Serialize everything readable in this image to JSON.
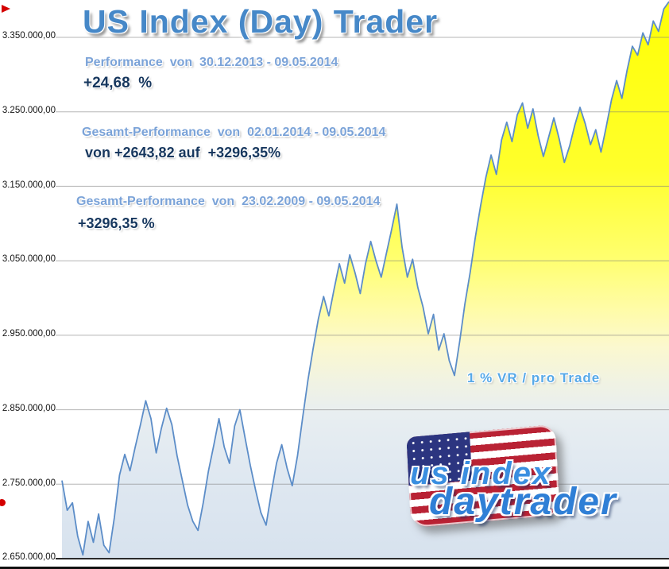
{
  "title": "US Index (Day) Trader",
  "annotations": {
    "performance": {
      "label": "Performance  von  30.12.2013 - 09.05.2014",
      "value": "+24,68  %"
    },
    "gesamt_2014": {
      "label": "Gesamt-Performance  von  02.01.2014 - 09.05.2014",
      "value": "von +2643,82 auf  +3296,35%"
    },
    "gesamt_2009": {
      "label": "Gesamt-Performance  von  23.02.2009 - 09.05.2014",
      "value": "+3296,35 %"
    },
    "risk_note": "1 % VR / pro Trade"
  },
  "logo": {
    "line1": "us index",
    "line2": "daytrader"
  },
  "chart_data": {
    "type": "area",
    "title": "US Index (Day) Trader",
    "xlabel": "",
    "ylabel": "",
    "legend": "none",
    "grid": "horizontal",
    "ylim": [
      2650000,
      3350000
    ],
    "yticks": [
      {
        "label": "3.350.000,00",
        "value": 3350000
      },
      {
        "label": "3.250.000,00",
        "value": 3250000
      },
      {
        "label": "3.150.000,00",
        "value": 3150000
      },
      {
        "label": "3.050.000,00",
        "value": 3050000
      },
      {
        "label": "2.950.000,00",
        "value": 2950000
      },
      {
        "label": "2.850.000,00",
        "value": 2850000
      },
      {
        "label": "2.750.000,00",
        "value": 2750000
      },
      {
        "label": "2.650.000,00",
        "value": 2650000
      }
    ],
    "colors": {
      "line": "#5c8dc8",
      "grid": "#787878",
      "axis": "#2b2b2b",
      "fill_top": "#ffff05",
      "fill_bottom": "#d7e2ee",
      "accent_text": "#4688c8",
      "value_text": "#17375e"
    },
    "fill_gradient": [
      [
        0.0,
        "#ffff05"
      ],
      [
        0.3,
        "#ffff2b"
      ],
      [
        0.46,
        "#ffff6e"
      ],
      [
        0.55,
        "#fffca6"
      ],
      [
        0.62,
        "#fbf8cf"
      ],
      [
        0.68,
        "#f1f3e2"
      ],
      [
        0.74,
        "#e8eef1"
      ],
      [
        0.85,
        "#dfe8f1"
      ],
      [
        1.0,
        "#d7e2ee"
      ]
    ],
    "values": [
      2755000,
      2715000,
      2725000,
      2680000,
      2655000,
      2700000,
      2672000,
      2710000,
      2668000,
      2658000,
      2705000,
      2762000,
      2790000,
      2768000,
      2800000,
      2830000,
      2862000,
      2838000,
      2792000,
      2825000,
      2852000,
      2830000,
      2788000,
      2755000,
      2722000,
      2700000,
      2688000,
      2725000,
      2768000,
      2802000,
      2838000,
      2800000,
      2778000,
      2828000,
      2850000,
      2812000,
      2775000,
      2742000,
      2712000,
      2695000,
      2738000,
      2778000,
      2803000,
      2772000,
      2748000,
      2788000,
      2840000,
      2890000,
      2932000,
      2972000,
      3002000,
      2976000,
      3012000,
      3046000,
      3020000,
      3058000,
      3034000,
      3006000,
      3046000,
      3076000,
      3050000,
      3028000,
      3060000,
      3092000,
      3126000,
      3068000,
      3028000,
      3052000,
      3014000,
      2988000,
      2952000,
      2978000,
      2930000,
      2952000,
      2916000,
      2896000,
      2942000,
      2992000,
      3034000,
      3082000,
      3124000,
      3162000,
      3192000,
      3166000,
      3212000,
      3236000,
      3210000,
      3246000,
      3262000,
      3228000,
      3254000,
      3218000,
      3190000,
      3216000,
      3242000,
      3214000,
      3182000,
      3204000,
      3232000,
      3256000,
      3234000,
      3206000,
      3226000,
      3196000,
      3230000,
      3266000,
      3292000,
      3268000,
      3306000,
      3338000,
      3326000,
      3356000,
      3340000,
      3372000,
      3358000,
      3388000,
      3398000
    ]
  }
}
